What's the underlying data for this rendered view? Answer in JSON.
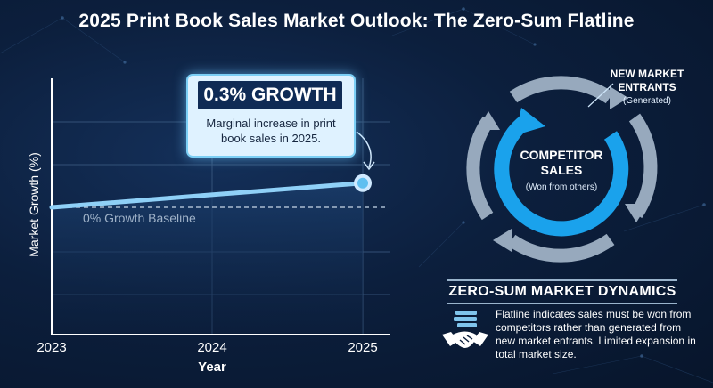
{
  "title": "2025 Print Book Sales Market Outlook: The Zero-Sum Flatline",
  "chart_data": {
    "type": "line",
    "x": [
      2023,
      2024,
      2025
    ],
    "x_tick_labels": [
      "2023",
      "2024",
      "2025"
    ],
    "series": [
      {
        "values": [
          0.0,
          0.15,
          0.3
        ]
      }
    ],
    "xlabel": "Year",
    "ylabel": "Market Growth (%)",
    "baseline": {
      "value": 0,
      "label": "0% Growth Baseline"
    },
    "highlight": {
      "x": 2025,
      "value": 0.3
    },
    "grid": true,
    "colors": {
      "line": "#8fd0f7",
      "marker": "#5fbff0",
      "area": "#123259",
      "baseline": "#aabbd0"
    }
  },
  "callout": {
    "headline": "0.3% GROWTH",
    "text": "Marginal increase in print book sales in 2025."
  },
  "cycle": {
    "center_label": "COMPETITOR SALES",
    "center_sub": "(Won from others)",
    "outer_label": "NEW MARKET ENTRANTS",
    "outer_sub": "(Generated)",
    "colors": {
      "inner": "#1aa2ec",
      "outer": "#97a9bd"
    }
  },
  "dynamics": {
    "title": "ZERO-SUM MARKET DYNAMICS",
    "icon": "handshake-icon",
    "text": "Flatline indicates sales must be won from competitors rather than generated from new market entrants. Limited expansion in total market size."
  }
}
